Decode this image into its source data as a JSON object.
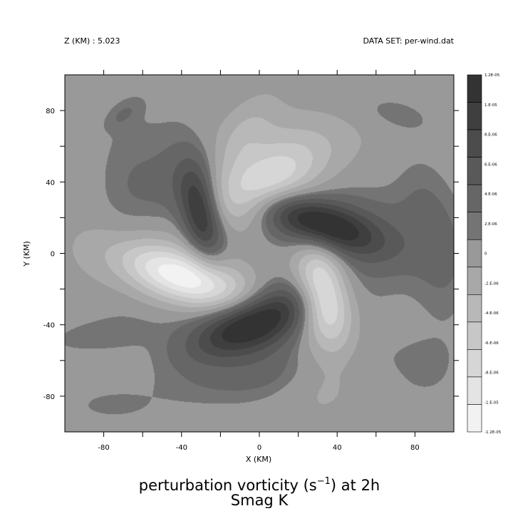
{
  "header": {
    "z_label": "Z (KM) : 5.023",
    "dataset_label": "DATA SET: per-wind.dat"
  },
  "title": {
    "line1_main": "perturbation vorticity (s",
    "line1_exp": "−1",
    "line1_tail": ") at 2h",
    "line2": "Smag K"
  },
  "chart_data": {
    "type": "heatmap",
    "subtype": "filled-contour",
    "xlabel": "X (KM)",
    "ylabel": "Y (KM)",
    "xlim": [
      -100,
      100
    ],
    "ylim": [
      -100,
      100
    ],
    "x_ticks": [
      "-80",
      "-40",
      "0",
      "40",
      "80"
    ],
    "y_ticks": [
      "80",
      "40",
      "0",
      "-40",
      "-80"
    ],
    "x_tick_values": [
      -80,
      -40,
      0,
      40,
      80
    ],
    "y_tick_values": [
      80,
      40,
      0,
      -40,
      -80
    ],
    "colorbar": {
      "labels": [
        "1.2E-05",
        "1.E-05",
        "8.E-06",
        "6.E-06",
        "4.E-06",
        "2.E-06",
        "0",
        "-2.E-06",
        "-4.E-06",
        "-6.E-06",
        "-8.E-06",
        "-1.E-05",
        "-1.2E-05"
      ],
      "levels": [
        1.2e-05,
        1e-05,
        8e-06,
        6e-06,
        4e-06,
        2e-06,
        0,
        -2e-06,
        -4e-06,
        -6e-06,
        -8e-06,
        -1e-05,
        -1.2e-05
      ],
      "colors": [
        "#333333",
        "#3f3f3f",
        "#4c4c4c",
        "#595959",
        "#666666",
        "#747474",
        "#999999",
        "#a8a8a8",
        "#b8b8b8",
        "#c7c7c7",
        "#d6d6d6",
        "#e4e4e4",
        "#f2f2f2"
      ]
    },
    "background_value": 0,
    "features": [
      {
        "x": -30,
        "y": 22,
        "sx": 7,
        "sy": 18,
        "angle": 10,
        "value": 1.1e-05
      },
      {
        "x": 30,
        "y": 17,
        "sx": 22,
        "sy": 9,
        "angle": -20,
        "value": 1.2e-05
      },
      {
        "x": -2,
        "y": -38,
        "sx": 24,
        "sy": 10,
        "angle": 25,
        "value": 1.2e-05
      },
      {
        "x": 0,
        "y": 38,
        "sx": 24,
        "sy": 12,
        "angle": 30,
        "value": -1e-05
      },
      {
        "x": 33,
        "y": -22,
        "sx": 9,
        "sy": 20,
        "angle": 10,
        "value": -1.2e-05
      },
      {
        "x": -37,
        "y": -14,
        "sx": 24,
        "sy": 10,
        "angle": -20,
        "value": -1.2e-05
      },
      {
        "x": -40,
        "y": 35,
        "sx": 20,
        "sy": 30,
        "angle": 0,
        "value": 3e-06
      },
      {
        "x": 55,
        "y": 10,
        "sx": 28,
        "sy": 18,
        "angle": -15,
        "value": 3e-06
      },
      {
        "x": 10,
        "y": -50,
        "sx": 30,
        "sy": 18,
        "angle": 20,
        "value": 3e-06
      },
      {
        "x": 5,
        "y": 65,
        "sx": 30,
        "sy": 12,
        "angle": 0,
        "value": -2e-06
      },
      {
        "x": -10,
        "y": 62,
        "sx": 8,
        "sy": 20,
        "angle": -30,
        "value": -2.5e-06
      },
      {
        "x": 30,
        "y": -55,
        "sx": 14,
        "sy": 25,
        "angle": 0,
        "value": -2.5e-06
      },
      {
        "x": -55,
        "y": -2,
        "sx": 25,
        "sy": 15,
        "angle": -10,
        "value": -2.5e-06
      },
      {
        "x": 70,
        "y": 78,
        "sx": 15,
        "sy": 7,
        "angle": -15,
        "value": 1.5e-06
      },
      {
        "x": -70,
        "y": 78,
        "sx": 8,
        "sy": 4,
        "angle": 40,
        "value": 1.5e-06
      },
      {
        "x": 85,
        "y": 30,
        "sx": 10,
        "sy": 20,
        "angle": 10,
        "value": 1.5e-06
      },
      {
        "x": 95,
        "y": -10,
        "sx": 10,
        "sy": 25,
        "angle": 0,
        "value": 1.5e-06
      },
      {
        "x": -80,
        "y": -45,
        "sx": 25,
        "sy": 8,
        "angle": 10,
        "value": 1.5e-06
      },
      {
        "x": 85,
        "y": -65,
        "sx": 10,
        "sy": 10,
        "angle": 0,
        "value": 1.5e-06
      },
      {
        "x": -75,
        "y": -85,
        "sx": 10,
        "sy": 4,
        "angle": 0,
        "value": 1.5e-06
      },
      {
        "x": 0,
        "y": -70,
        "sx": 60,
        "sy": 8,
        "angle": 10,
        "value": 1e-06
      },
      {
        "x": -70,
        "y": 30,
        "sx": 10,
        "sy": 40,
        "angle": 0,
        "value": 1e-06
      }
    ]
  }
}
